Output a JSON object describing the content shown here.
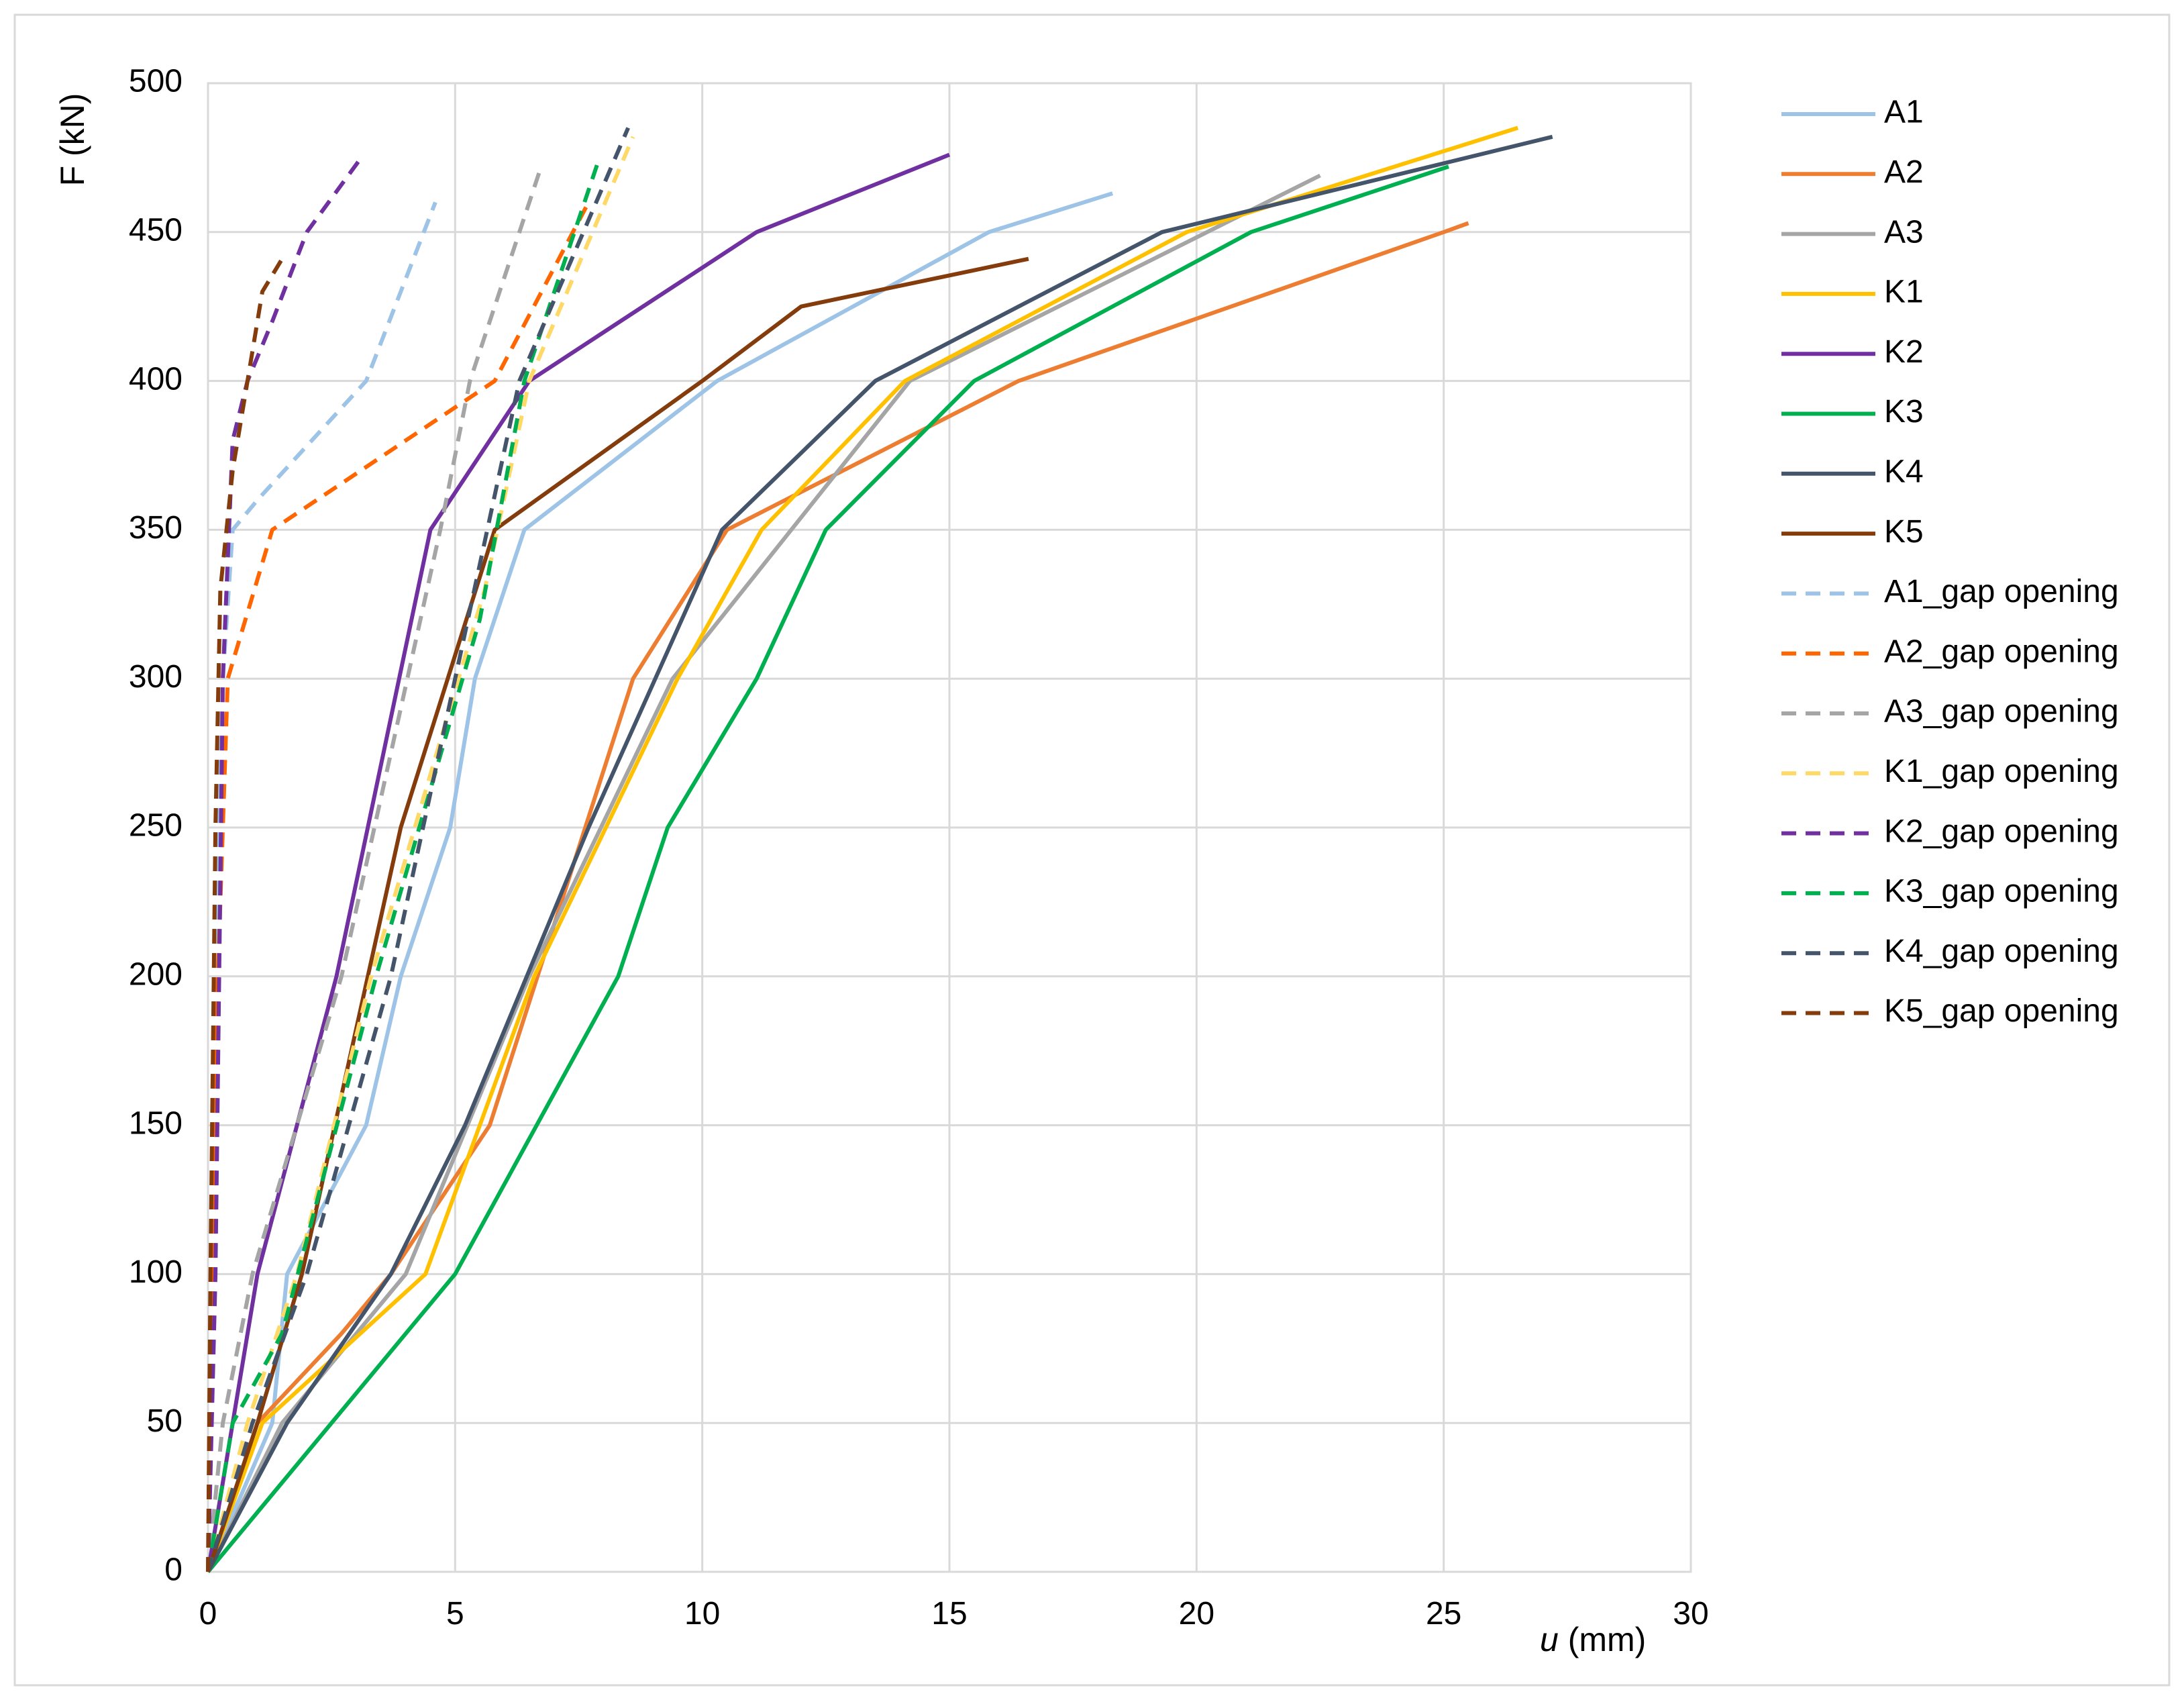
{
  "chart_data": {
    "type": "line",
    "xlabel_italic": "u",
    "xlabel_unit": " (mm)",
    "ylabel": "F (kN)",
    "xlim": [
      0,
      30
    ],
    "ylim": [
      0,
      500
    ],
    "x_ticks": [
      0,
      5,
      10,
      15,
      20,
      25,
      30
    ],
    "y_ticks": [
      0,
      50,
      100,
      150,
      200,
      250,
      300,
      350,
      400,
      450,
      500
    ],
    "grid": true,
    "legend_position": "right",
    "series": [
      {
        "name": "A1",
        "color": "#9dc3e6",
        "dashed": false,
        "points": [
          [
            0,
            0
          ],
          [
            1.3,
            50
          ],
          [
            1.6,
            100
          ],
          [
            3.2,
            150
          ],
          [
            3.9,
            200
          ],
          [
            4.9,
            250
          ],
          [
            5.4,
            300
          ],
          [
            6.4,
            350
          ],
          [
            10.3,
            400
          ],
          [
            15.8,
            450
          ],
          [
            18.3,
            463
          ]
        ]
      },
      {
        "name": "A2",
        "color": "#ed7d31",
        "dashed": false,
        "points": [
          [
            0,
            0
          ],
          [
            1.0,
            50
          ],
          [
            2.7,
            80
          ],
          [
            3.7,
            100
          ],
          [
            5.7,
            150
          ],
          [
            8.6,
            300
          ],
          [
            10.5,
            350
          ],
          [
            16.4,
            400
          ],
          [
            25.0,
            450
          ],
          [
            25.5,
            453
          ]
        ]
      },
      {
        "name": "A3",
        "color": "#a5a5a5",
        "dashed": false,
        "points": [
          [
            0,
            0
          ],
          [
            1.5,
            50
          ],
          [
            4.0,
            100
          ],
          [
            6.5,
            200
          ],
          [
            9.4,
            300
          ],
          [
            14.2,
            400
          ],
          [
            22.5,
            469
          ]
        ]
      },
      {
        "name": "K1",
        "color": "#ffc000",
        "dashed": false,
        "points": [
          [
            0,
            0
          ],
          [
            1.1,
            50
          ],
          [
            4.4,
            100
          ],
          [
            6.6,
            200
          ],
          [
            9.5,
            300
          ],
          [
            11.2,
            350
          ],
          [
            14.1,
            400
          ],
          [
            19.8,
            450
          ],
          [
            26.5,
            485
          ]
        ]
      },
      {
        "name": "K2",
        "color": "#7030a0",
        "dashed": false,
        "points": [
          [
            0,
            0
          ],
          [
            1.0,
            100
          ],
          [
            1.8,
            150
          ],
          [
            2.6,
            200
          ],
          [
            4.5,
            350
          ],
          [
            6.5,
            400
          ],
          [
            11.1,
            450
          ],
          [
            15.0,
            476
          ]
        ]
      },
      {
        "name": "K3",
        "color": "#00b050",
        "dashed": false,
        "points": [
          [
            0,
            0
          ],
          [
            2.5,
            50
          ],
          [
            5.0,
            100
          ],
          [
            8.3,
            200
          ],
          [
            9.3,
            250
          ],
          [
            11.1,
            300
          ],
          [
            12.5,
            350
          ],
          [
            15.5,
            400
          ],
          [
            21.1,
            450
          ],
          [
            25.1,
            472
          ]
        ]
      },
      {
        "name": "K4",
        "color": "#44546a",
        "dashed": false,
        "points": [
          [
            0,
            0
          ],
          [
            1.6,
            50
          ],
          [
            3.7,
            100
          ],
          [
            5.2,
            150
          ],
          [
            7.7,
            250
          ],
          [
            10.4,
            350
          ],
          [
            13.5,
            400
          ],
          [
            19.3,
            450
          ],
          [
            27.2,
            482
          ]
        ]
      },
      {
        "name": "K5",
        "color": "#843c0c",
        "dashed": false,
        "points": [
          [
            0,
            0
          ],
          [
            1.0,
            50
          ],
          [
            1.9,
            100
          ],
          [
            3.9,
            250
          ],
          [
            5.8,
            350
          ],
          [
            10.0,
            400
          ],
          [
            12.0,
            425
          ],
          [
            16.6,
            441
          ]
        ]
      },
      {
        "name": "A1_gap opening",
        "color": "#9dc3e6",
        "dashed": true,
        "points": [
          [
            0,
            0
          ],
          [
            0.15,
            200
          ],
          [
            0.3,
            300
          ],
          [
            0.5,
            350
          ],
          [
            1.0,
            360
          ],
          [
            3.2,
            400
          ],
          [
            4.6,
            460
          ]
        ]
      },
      {
        "name": "A2_gap opening",
        "color": "#ff6600",
        "dashed": true,
        "points": [
          [
            0,
            0
          ],
          [
            0.2,
            200
          ],
          [
            0.4,
            300
          ],
          [
            1.3,
            350
          ],
          [
            5.8,
            400
          ],
          [
            7.7,
            460
          ]
        ]
      },
      {
        "name": "A3_gap opening",
        "color": "#a5a5a5",
        "dashed": true,
        "points": [
          [
            0,
            0
          ],
          [
            0.3,
            50
          ],
          [
            0.9,
            100
          ],
          [
            2.7,
            200
          ],
          [
            4.7,
            350
          ],
          [
            5.3,
            400
          ],
          [
            6.7,
            470
          ]
        ]
      },
      {
        "name": "K1_gap opening",
        "color": "#ffd966",
        "dashed": true,
        "points": [
          [
            0,
            0
          ],
          [
            0.8,
            50
          ],
          [
            1.8,
            100
          ],
          [
            3.3,
            200
          ],
          [
            5.6,
            330
          ],
          [
            6.5,
            400
          ],
          [
            8.6,
            482
          ]
        ]
      },
      {
        "name": "K2_gap opening",
        "color": "#7030a0",
        "dashed": true,
        "points": [
          [
            0,
            0
          ],
          [
            0.15,
            100
          ],
          [
            0.3,
            300
          ],
          [
            0.5,
            380
          ],
          [
            0.8,
            400
          ],
          [
            1.3,
            420
          ],
          [
            2.0,
            450
          ],
          [
            3.1,
            475
          ]
        ]
      },
      {
        "name": "K3_gap opening",
        "color": "#00b050",
        "dashed": true,
        "points": [
          [
            0,
            0
          ],
          [
            0.5,
            50
          ],
          [
            1.5,
            80
          ],
          [
            3.4,
            200
          ],
          [
            5.5,
            320
          ],
          [
            6.4,
            400
          ],
          [
            7.9,
            474
          ]
        ]
      },
      {
        "name": "K4_gap opening",
        "color": "#44546a",
        "dashed": true,
        "points": [
          [
            0,
            0
          ],
          [
            0.9,
            50
          ],
          [
            2.0,
            100
          ],
          [
            3.7,
            200
          ],
          [
            6.3,
            400
          ],
          [
            8.5,
            485
          ]
        ]
      },
      {
        "name": "K5_gap opening",
        "color": "#843c0c",
        "dashed": true,
        "points": [
          [
            0,
            0
          ],
          [
            0.05,
            100
          ],
          [
            0.15,
            250
          ],
          [
            0.25,
            330
          ],
          [
            0.5,
            370
          ],
          [
            0.8,
            400
          ],
          [
            1.1,
            430
          ],
          [
            1.5,
            441
          ]
        ]
      }
    ]
  }
}
